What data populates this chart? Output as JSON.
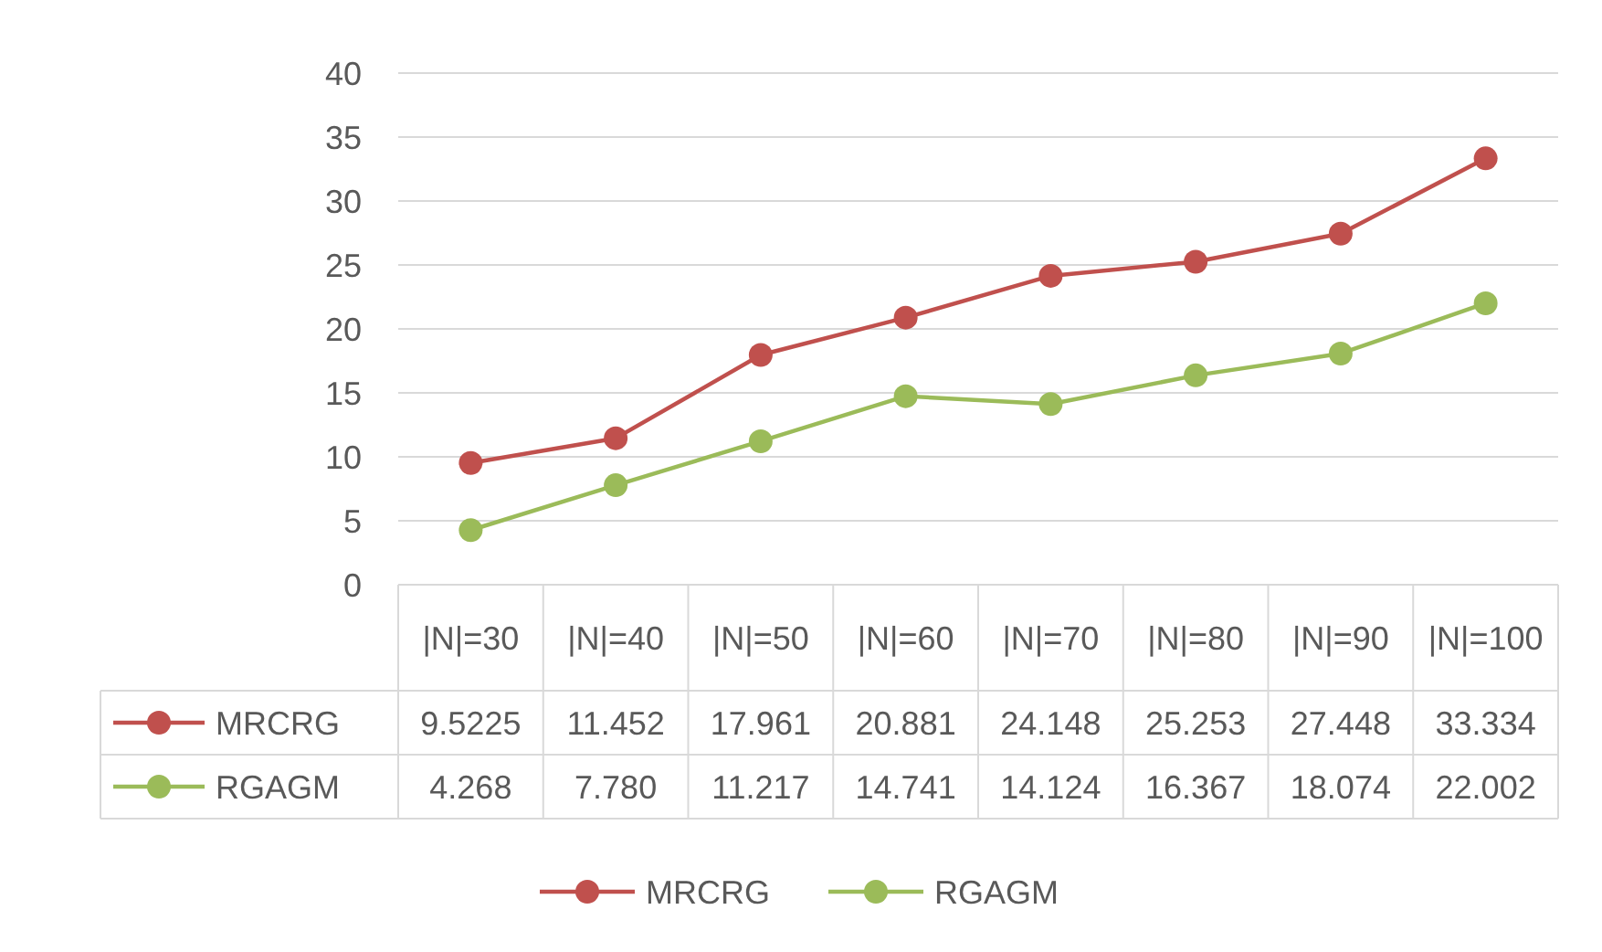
{
  "chart_data": {
    "type": "line",
    "categories": [
      "|N|=30",
      "|N|=40",
      "|N|=50",
      "|N|=60",
      "|N|=70",
      "|N|=80",
      "|N|=90",
      "|N|=100"
    ],
    "series": [
      {
        "name": "MRCRG",
        "color": "#c0504d",
        "values": [
          9.5225,
          11.452,
          17.961,
          20.881,
          24.148,
          25.253,
          27.448,
          33.334
        ],
        "value_labels": [
          "9.5225",
          "11.452",
          "17.961",
          "20.881",
          "24.148",
          "25.253",
          "27.448",
          "33.334"
        ]
      },
      {
        "name": "RGAGM",
        "color": "#9bbb59",
        "values": [
          4.268,
          7.78,
          11.217,
          14.741,
          14.124,
          16.367,
          18.074,
          22.002
        ],
        "value_labels": [
          "4.268",
          "7.780",
          "11.217",
          "14.741",
          "14.124",
          "16.367",
          "18.074",
          "22.002"
        ]
      }
    ],
    "ylim": [
      0,
      40
    ],
    "yticks": [
      0,
      5,
      10,
      15,
      20,
      25,
      30,
      35,
      40
    ],
    "grid": "y",
    "legend": "bottom",
    "marker": "circle",
    "line_style": "solid"
  }
}
